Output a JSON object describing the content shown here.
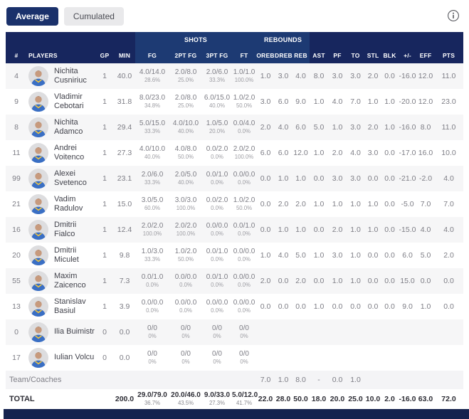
{
  "tabs": {
    "average": {
      "label": "Average",
      "active": true
    },
    "cumulated": {
      "label": "Cumulated",
      "active": false
    }
  },
  "colors": {
    "header_dark": "#17265e",
    "header_light": "#1d3a73",
    "tab_active_bg": "#1a316b",
    "row_stripe": "#f6f6f7"
  },
  "table": {
    "groups": {
      "shots": "SHOTS",
      "rebounds": "REBOUNDS"
    },
    "columns": [
      "#",
      "PLAYERS",
      "GP",
      "MIN",
      "FG",
      "2PT FG",
      "3PT FG",
      "FT",
      "OREB",
      "DREB",
      "REB",
      "AST",
      "PF",
      "TO",
      "STL",
      "BLK",
      "+/-",
      "EFF",
      "PTS"
    ],
    "players": [
      {
        "num": "4",
        "name": "Nichita Cusniriuc",
        "gp": "1",
        "min": "40.0",
        "fg": "4.0/14.0",
        "fg_pct": "28.6%",
        "p2": "2.0/8.0",
        "p2_pct": "25.0%",
        "p3": "2.0/6.0",
        "p3_pct": "33.3%",
        "ft": "1.0/1.0",
        "ft_pct": "100.0%",
        "oreb": "1.0",
        "dreb": "3.0",
        "reb": "4.0",
        "ast": "8.0",
        "pf": "3.0",
        "to": "3.0",
        "stl": "2.0",
        "blk": "0.0",
        "pm": "-16.0",
        "eff": "12.0",
        "pts": "11.0"
      },
      {
        "num": "9",
        "name": "Vladimir Cebotari",
        "gp": "1",
        "min": "31.8",
        "fg": "8.0/23.0",
        "fg_pct": "34.8%",
        "p2": "2.0/8.0",
        "p2_pct": "25.0%",
        "p3": "6.0/15.0",
        "p3_pct": "40.0%",
        "ft": "1.0/2.0",
        "ft_pct": "50.0%",
        "oreb": "3.0",
        "dreb": "6.0",
        "reb": "9.0",
        "ast": "1.0",
        "pf": "4.0",
        "to": "7.0",
        "stl": "1.0",
        "blk": "1.0",
        "pm": "-20.0",
        "eff": "12.0",
        "pts": "23.0"
      },
      {
        "num": "8",
        "name": "Nichita Adamco",
        "gp": "1",
        "min": "29.4",
        "fg": "5.0/15.0",
        "fg_pct": "33.3%",
        "p2": "4.0/10.0",
        "p2_pct": "40.0%",
        "p3": "1.0/5.0",
        "p3_pct": "20.0%",
        "ft": "0.0/4.0",
        "ft_pct": "0.0%",
        "oreb": "2.0",
        "dreb": "4.0",
        "reb": "6.0",
        "ast": "5.0",
        "pf": "1.0",
        "to": "3.0",
        "stl": "2.0",
        "blk": "1.0",
        "pm": "-16.0",
        "eff": "8.0",
        "pts": "11.0"
      },
      {
        "num": "11",
        "name": "Andrei Voitenco",
        "gp": "1",
        "min": "27.3",
        "fg": "4.0/10.0",
        "fg_pct": "40.0%",
        "p2": "4.0/8.0",
        "p2_pct": "50.0%",
        "p3": "0.0/2.0",
        "p3_pct": "0.0%",
        "ft": "2.0/2.0",
        "ft_pct": "100.0%",
        "oreb": "6.0",
        "dreb": "6.0",
        "reb": "12.0",
        "ast": "1.0",
        "pf": "2.0",
        "to": "4.0",
        "stl": "3.0",
        "blk": "0.0",
        "pm": "-17.0",
        "eff": "16.0",
        "pts": "10.0"
      },
      {
        "num": "99",
        "name": "Alexei Svetenco",
        "gp": "1",
        "min": "23.1",
        "fg": "2.0/6.0",
        "fg_pct": "33.3%",
        "p2": "2.0/5.0",
        "p2_pct": "40.0%",
        "p3": "0.0/1.0",
        "p3_pct": "0.0%",
        "ft": "0.0/0.0",
        "ft_pct": "0.0%",
        "oreb": "0.0",
        "dreb": "1.0",
        "reb": "1.0",
        "ast": "0.0",
        "pf": "3.0",
        "to": "3.0",
        "stl": "0.0",
        "blk": "0.0",
        "pm": "-21.0",
        "eff": "-2.0",
        "pts": "4.0"
      },
      {
        "num": "21",
        "name": "Vadim Radulov",
        "gp": "1",
        "min": "15.0",
        "fg": "3.0/5.0",
        "fg_pct": "60.0%",
        "p2": "3.0/3.0",
        "p2_pct": "100.0%",
        "p3": "0.0/2.0",
        "p3_pct": "0.0%",
        "ft": "1.0/2.0",
        "ft_pct": "50.0%",
        "oreb": "0.0",
        "dreb": "2.0",
        "reb": "2.0",
        "ast": "1.0",
        "pf": "1.0",
        "to": "1.0",
        "stl": "1.0",
        "blk": "0.0",
        "pm": "-5.0",
        "eff": "7.0",
        "pts": "7.0"
      },
      {
        "num": "16",
        "name": "Dmitrii Fialco",
        "gp": "1",
        "min": "12.4",
        "fg": "2.0/2.0",
        "fg_pct": "100.0%",
        "p2": "2.0/2.0",
        "p2_pct": "100.0%",
        "p3": "0.0/0.0",
        "p3_pct": "0.0%",
        "ft": "0.0/1.0",
        "ft_pct": "0.0%",
        "oreb": "0.0",
        "dreb": "1.0",
        "reb": "1.0",
        "ast": "0.0",
        "pf": "2.0",
        "to": "1.0",
        "stl": "1.0",
        "blk": "0.0",
        "pm": "-15.0",
        "eff": "4.0",
        "pts": "4.0"
      },
      {
        "num": "20",
        "name": "Dmitrii Miculet",
        "gp": "1",
        "min": "9.8",
        "fg": "1.0/3.0",
        "fg_pct": "33.3%",
        "p2": "1.0/2.0",
        "p2_pct": "50.0%",
        "p3": "0.0/1.0",
        "p3_pct": "0.0%",
        "ft": "0.0/0.0",
        "ft_pct": "0.0%",
        "oreb": "1.0",
        "dreb": "4.0",
        "reb": "5.0",
        "ast": "1.0",
        "pf": "3.0",
        "to": "1.0",
        "stl": "0.0",
        "blk": "0.0",
        "pm": "6.0",
        "eff": "5.0",
        "pts": "2.0"
      },
      {
        "num": "55",
        "name": "Maxim Zaicenco",
        "gp": "1",
        "min": "7.3",
        "fg": "0.0/1.0",
        "fg_pct": "0.0%",
        "p2": "0.0/0.0",
        "p2_pct": "0.0%",
        "p3": "0.0/1.0",
        "p3_pct": "0.0%",
        "ft": "0.0/0.0",
        "ft_pct": "0.0%",
        "oreb": "2.0",
        "dreb": "0.0",
        "reb": "2.0",
        "ast": "0.0",
        "pf": "1.0",
        "to": "1.0",
        "stl": "0.0",
        "blk": "0.0",
        "pm": "15.0",
        "eff": "0.0",
        "pts": "0.0"
      },
      {
        "num": "13",
        "name": "Stanislav Basiul",
        "gp": "1",
        "min": "3.9",
        "fg": "0.0/0.0",
        "fg_pct": "0.0%",
        "p2": "0.0/0.0",
        "p2_pct": "0.0%",
        "p3": "0.0/0.0",
        "p3_pct": "0.0%",
        "ft": "0.0/0.0",
        "ft_pct": "0.0%",
        "oreb": "0.0",
        "dreb": "0.0",
        "reb": "0.0",
        "ast": "1.0",
        "pf": "0.0",
        "to": "0.0",
        "stl": "0.0",
        "blk": "0.0",
        "pm": "9.0",
        "eff": "1.0",
        "pts": "0.0"
      },
      {
        "num": "0",
        "name": "Ilia Buimistr",
        "gp": "0",
        "min": "0.0",
        "fg": "0/0",
        "fg_pct": "0%",
        "p2": "0/0",
        "p2_pct": "0%",
        "p3": "0/0",
        "p3_pct": "0%",
        "ft": "0/0",
        "ft_pct": "0%",
        "oreb": "",
        "dreb": "",
        "reb": "",
        "ast": "",
        "pf": "",
        "to": "",
        "stl": "",
        "blk": "",
        "pm": "",
        "eff": "",
        "pts": ""
      },
      {
        "num": "17",
        "name": "Iulian Volcu",
        "gp": "0",
        "min": "0.0",
        "fg": "0/0",
        "fg_pct": "0%",
        "p2": "0/0",
        "p2_pct": "0%",
        "p3": "0/0",
        "p3_pct": "0%",
        "ft": "0/0",
        "ft_pct": "0%",
        "oreb": "",
        "dreb": "",
        "reb": "",
        "ast": "",
        "pf": "",
        "to": "",
        "stl": "",
        "blk": "",
        "pm": "",
        "eff": "",
        "pts": ""
      }
    ],
    "team_row": {
      "label": "Team/Coaches",
      "oreb": "7.0",
      "dreb": "1.0",
      "reb": "8.0",
      "ast": "-",
      "pf": "0.0",
      "to": "1.0"
    },
    "total_row": {
      "label": "TOTAL",
      "min": "200.0",
      "fg": "29.0/79.0",
      "fg_pct": "36.7%",
      "p2": "20.0/46.0",
      "p2_pct": "43.5%",
      "p3": "9.0/33.0",
      "p3_pct": "27.3%",
      "ft": "5.0/12.0",
      "ft_pct": "41.7%",
      "oreb": "22.0",
      "dreb": "28.0",
      "reb": "50.0",
      "ast": "18.0",
      "pf": "20.0",
      "to": "25.0",
      "stl": "10.0",
      "blk": "2.0",
      "pm": "-16.0",
      "eff": "63.0",
      "pts": "72.0"
    }
  }
}
